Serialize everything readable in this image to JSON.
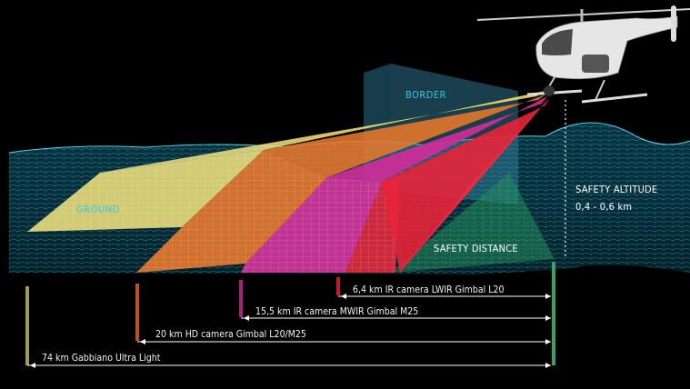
{
  "labels": {
    "border": "BORDER",
    "ground": "GROUND",
    "safety_altitude": "SAFETY ALTITUDE",
    "safety_altitude_value": "0,4 - 0,6 km",
    "safety_distance": "SAFETY DISTANCE"
  },
  "ranges": [
    {
      "text": "6,4 km IR camera LWIR Gimbal L20",
      "color": "#e0203a"
    },
    {
      "text": "15,5 km IR camera MWIR Gimbal M25",
      "color": "#c8258f"
    },
    {
      "text": "20 km HD camera Gimbal L20/M25",
      "color": "#d9601a"
    },
    {
      "text": "74 km Gabbiano Ultra Light",
      "color": "#e6d36a"
    }
  ],
  "colors": {
    "terrain": "#1fa6c6",
    "beam_yellow": "#f2e25a",
    "beam_orange": "#ee7a2a",
    "beam_magenta": "#d42c9a",
    "beam_red": "#e8243a",
    "safety_zone": "#1f8a58"
  }
}
